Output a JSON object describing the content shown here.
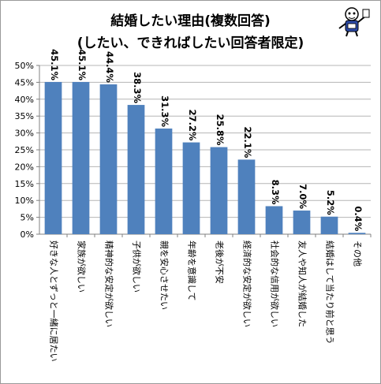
{
  "title_line1": "結婚したい理由(複数回答)",
  "title_line2": "(したい、できればしたい回答者限定)",
  "mascot": {
    "icon": "cartoon-character-logo"
  },
  "chart_data": {
    "type": "bar",
    "title": "結婚したい理由(複数回答) (したい、できればしたい回答者限定)",
    "categories": [
      "好きな人とずっと一緒に居たい",
      "家族が欲しい",
      "精神的な安定が欲しい",
      "子供が欲しい",
      "親を安心させたい",
      "年齢を意識して",
      "老後が不安",
      "経済的な安定が欲しい",
      "社会的な信用が欲しい",
      "友人や知人が結婚した",
      "結婚はして当たり前と思う",
      "その他"
    ],
    "values": [
      45.1,
      45.1,
      44.4,
      38.3,
      31.3,
      27.2,
      25.8,
      22.1,
      8.3,
      7.0,
      5.2,
      0.4
    ],
    "data_labels": [
      "45.1%",
      "45.1%",
      "44.4%",
      "38.3%",
      "31.3%",
      "27.2%",
      "25.8%",
      "22.1%",
      "8.3%",
      "7.0%",
      "5.2%",
      "0.4%"
    ],
    "ylim": [
      0,
      50
    ],
    "ytick_labels": [
      "0%",
      "5%",
      "10%",
      "15%",
      "20%",
      "25%",
      "30%",
      "35%",
      "40%",
      "45%",
      "50%"
    ],
    "xlabel": "",
    "ylabel": "",
    "bar_color": "#4f81bd",
    "grid": true,
    "legend": "none"
  }
}
